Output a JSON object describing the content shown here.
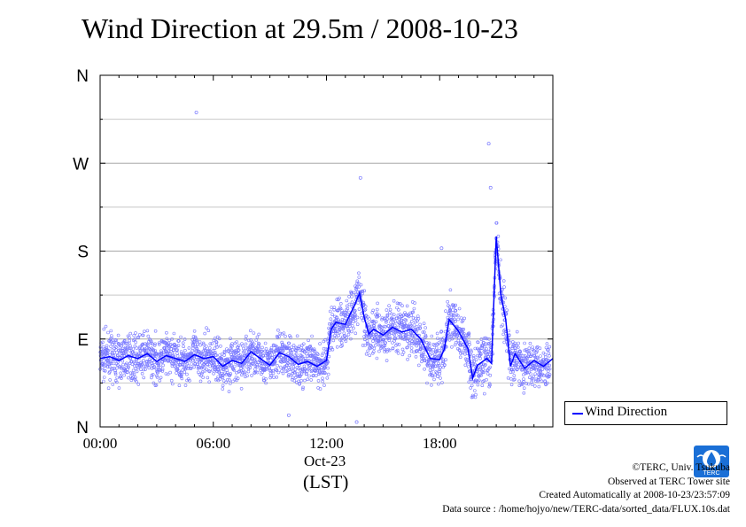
{
  "title": "Wind Direction at 29.5m / 2008-10-23",
  "chart_data": {
    "type": "scatter",
    "title": "Wind Direction at 29.5m / 2008-10-23",
    "xlabel_date": "Oct-23",
    "xlabel_unit": "(LST)",
    "x_unit": "hours LST",
    "xlim": [
      0,
      24
    ],
    "ylim": [
      0,
      360
    ],
    "x_tick_values": [
      0,
      6,
      12,
      18
    ],
    "x_tick_labels": [
      "00:00",
      "06:00",
      "12:00",
      "18:00"
    ],
    "y_tick_values": [
      0,
      90,
      180,
      270,
      360
    ],
    "y_tick_labels": [
      "N",
      "E",
      "S",
      "W",
      "N"
    ],
    "grid": true,
    "legend_position": "right",
    "series": [
      {
        "name": "Wind Direction",
        "color": "#0000ff",
        "points_color": "#7777ff",
        "x": [
          0,
          0.5,
          1,
          1.5,
          2,
          2.5,
          3,
          3.5,
          4,
          4.5,
          5,
          5.5,
          6,
          6.5,
          7,
          7.5,
          8,
          8.5,
          9,
          9.5,
          10,
          10.5,
          11,
          11.5,
          12,
          12.25,
          12.5,
          13,
          13.25,
          13.5,
          13.75,
          14,
          14.25,
          14.5,
          15,
          15.5,
          16,
          16.5,
          17,
          17.5,
          18,
          18.25,
          18.5,
          19,
          19.5,
          19.75,
          20,
          20.5,
          20.75,
          21,
          21.25,
          21.5,
          21.75,
          22,
          22.5,
          23,
          23.5,
          24
        ],
        "values": [
          70,
          72,
          68,
          73,
          70,
          75,
          67,
          73,
          70,
          67,
          74,
          70,
          72,
          62,
          68,
          65,
          77,
          70,
          63,
          76,
          72,
          64,
          67,
          62,
          68,
          100,
          107,
          105,
          115,
          125,
          137,
          112,
          95,
          100,
          94,
          102,
          97,
          100,
          90,
          70,
          69,
          80,
          110,
          98,
          80,
          50,
          63,
          70,
          65,
          195,
          135,
          110,
          62,
          75,
          60,
          68,
          62,
          70
        ]
      }
    ],
    "outliers": [
      {
        "x": 5.1,
        "y": 322
      },
      {
        "x": 13.8,
        "y": 255
      },
      {
        "x": 20.6,
        "y": 290
      },
      {
        "x": 18.1,
        "y": 183
      },
      {
        "x": 20.7,
        "y": 245
      },
      {
        "x": 13.6,
        "y": 5
      },
      {
        "x": 10.0,
        "y": 12
      }
    ]
  },
  "legend": {
    "label": "Wind Direction",
    "color": "#0000ff"
  },
  "credits": {
    "line1": "©TERC, Univ. Tsukuba",
    "line2": "Observed at TERC Tower site",
    "line3": "Created Automatically at 2008-10-23/23:57:09",
    "line4": "Data source : /home/hojyo/new/TERC-data/sorted_data/FLUX.10s.dat"
  },
  "logo": {
    "text": "TERC",
    "color": "#1a6fd6"
  }
}
